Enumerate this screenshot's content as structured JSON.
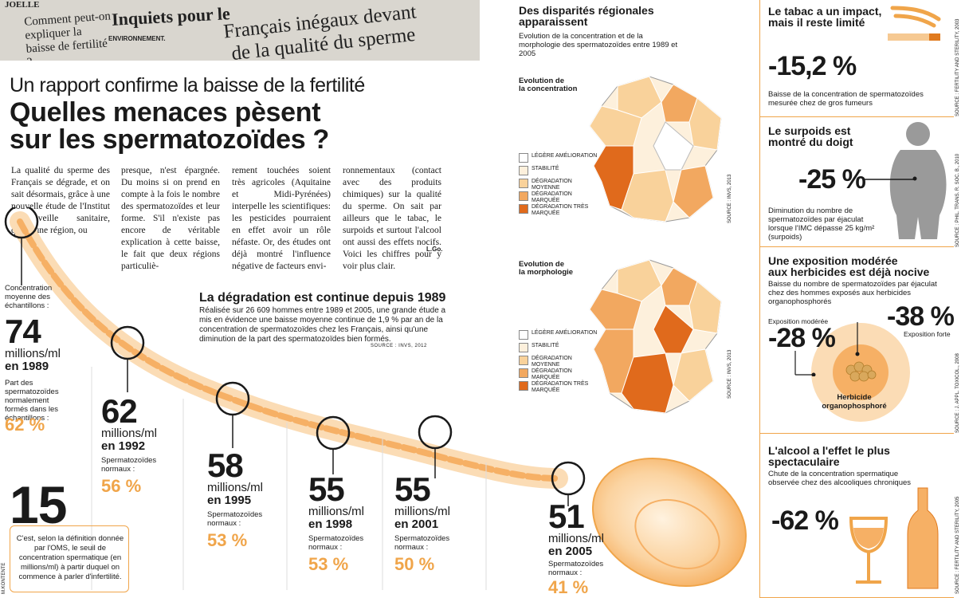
{
  "news": {
    "clip1": "JOELLE",
    "clip2": "Comment peut-on expliquer la baisse de fertilité ?",
    "clip3": "Inquiets pour le",
    "clip4": "ENVIRONNEMENT.",
    "clip5": "Français inégaux devant",
    "clip6": "de la qualité du sperme"
  },
  "header": {
    "kicker": "Un rapport confirme la baisse de la fertilité",
    "title_line1": "Quelles menaces pèsent",
    "title_line2": "sur les spermatozoïdes ?"
  },
  "article": {
    "col1": "La qualité du sperme des Français se dégrade, et on sait désormais, grâce à une nouvelle étude de l'Institut de veille sanitaire, qu'aucune région, ou",
    "col2": "presque, n'est épargnée. Du moins si on prend en compte à la fois le nombre des spermatozoïdes et leur forme. S'il n'existe pas encore de véritable explication à cette baisse, le fait que deux régions particuliè-",
    "col3": "rement touchées soient très agricoles (Aquitaine et Midi-Pyrénées) interpelle les scientifiques: les pesticides pourraient en effet avoir un rôle néfaste. Or, des études ont déjà montré l'influence négative de facteurs envi-",
    "col4": "ronnementaux (contact avec des produits chimiques) sur la qualité du sperme. On sait par ailleurs que le tabac, le surpoids et surtout l'alcool ont aussi des effets nocifs. Voici les chiffres pour y voir plus clair.",
    "signature": "L.Go."
  },
  "degradation": {
    "title": "La dégradation est continue depuis 1989",
    "text": "Réalisée sur 26 609 hommes entre 1989 et 2005, une grande étude a mis en évidence une baisse moyenne continue de 1,9 % par an de la concentration de spermatozoïdes chez les Français, ainsi qu'une diminution de la part des spermatozoïdes bien formés.",
    "source": "SOURCE : INVS, 2012"
  },
  "timeline_intro": {
    "conc_label": "Concentration moyenne des échantillons :",
    "form_label": "Part des spermatozoïdes normalement formés dans les échantillons :"
  },
  "timeline": [
    {
      "value": "74",
      "unit": "millions/ml",
      "year": "en 1989",
      "norm_label": "",
      "pct": "62 %"
    },
    {
      "value": "62",
      "unit": "millions/ml",
      "year": "en 1992",
      "norm_label": "Spermatozoïdes normaux :",
      "pct": "56 %"
    },
    {
      "value": "58",
      "unit": "millions/ml",
      "year": "en 1995",
      "norm_label": "Spermatozoïdes normaux :",
      "pct": "53 %"
    },
    {
      "value": "55",
      "unit": "millions/ml",
      "year": "en 1998",
      "norm_label": "Spermatozoïdes normaux :",
      "pct": "53 %"
    },
    {
      "value": "55",
      "unit": "millions/ml",
      "year": "en 2001",
      "norm_label": "Spermatozoïdes normaux :",
      "pct": "50 %"
    },
    {
      "value": "51",
      "unit": "millions/ml",
      "year": "en 2005",
      "norm_label": "Spermatozoïdes normaux :",
      "pct": "41 %"
    }
  ],
  "oms": {
    "value": "15",
    "text": "C'est, selon la définition donnée par l'OMS, le seuil de concentration spermatique (en millions/ml) à partir duquel on commence à parler d'infertilité."
  },
  "credit": "M.KONTENTE",
  "regional": {
    "title_line1": "Des disparités régionales",
    "title_line2": "apparaissent",
    "subtitle": "Evolution de la concentration et de la morphologie des spermatozoïdes entre 1989 et 2005",
    "map1_title_line1": "Evolution de",
    "map1_title_line2": "la concentration",
    "map2_title_line1": "Evolution de",
    "map2_title_line2": "la morphologie",
    "source": "SOURCE : INVS, 2013",
    "legend": [
      {
        "label": "LÉGÈRE AMÉLIORATION",
        "color": "#ffffff"
      },
      {
        "label": "STABILITÉ",
        "color": "#fdf0dc"
      },
      {
        "label": "DÉGRADATION MOYENNE",
        "color": "#f9d29b"
      },
      {
        "label": "DÉGRADATION MARQUÉE",
        "color": "#f2a860"
      },
      {
        "label": "DÉGRADATION TRÈS MARQUÉE",
        "color": "#e06a1c"
      }
    ]
  },
  "tabac": {
    "title_line1": "Le tabac a un impact,",
    "title_line2": "mais il reste limité",
    "value": "-15,2 %",
    "desc": "Baisse de la concentration de spermatozoïdes mesurée chez de gros fumeurs",
    "source": "SOURCE : FERTILITY AND STERILITY, 2003"
  },
  "surpoids": {
    "title_line1": "Le surpoids est",
    "title_line2": "montré du doigt",
    "value": "-25 %",
    "desc": "Diminution du nombre de spermatozoïdes par éjaculat lorsque l'IMC dépasse 25 kg/m² (surpoids)",
    "source": "SOURCE : PHIL. TRANS. R. SOC. B., 2010"
  },
  "herbicides": {
    "title_line1": "Une exposition modérée",
    "title_line2": "aux herbicides est déjà nocive",
    "desc": "Baisse du nombre de spermatozoïdes par éjaculat chez des hommes exposés aux herbicides organophosphorés",
    "moderate_label": "Exposition modérée",
    "moderate_value": "-28 %",
    "strong_label": "Exposition forte",
    "strong_value": "-38 %",
    "herbicide_line1": "Herbicide",
    "herbicide_line2": "organophosphoré",
    "source": "SOURCE : J. APPL. TOXICOL., 2008"
  },
  "alcool": {
    "title_line1": "L'alcool a l'effet le plus",
    "title_line2": "spectaculaire",
    "desc": "Chute de la concentration spermatique observée chez des alcooliques chroniques",
    "value": "-62 %",
    "source": "SOURCE : FERTILITY AND STERILITY, 2005"
  }
}
